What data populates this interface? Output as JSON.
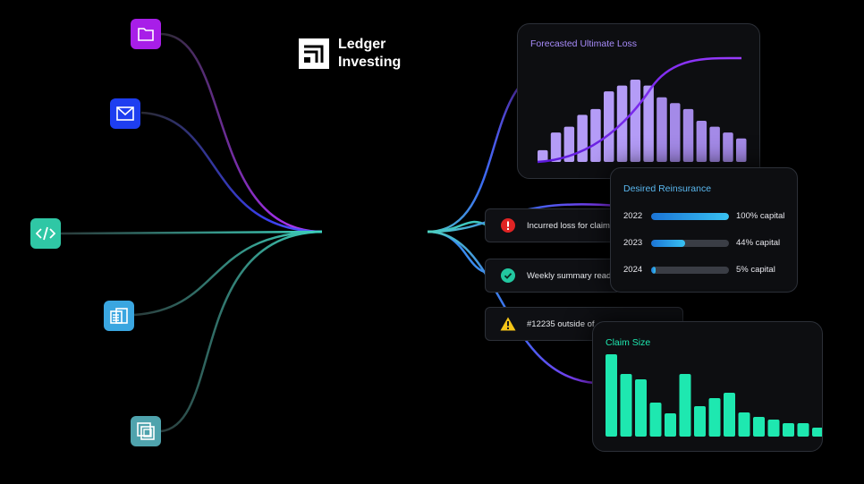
{
  "logo": {
    "line1": "Ledger",
    "line2": "Investing"
  },
  "source_icons": [
    {
      "name": "folder-icon",
      "color": "#a81ee8"
    },
    {
      "name": "mail-icon",
      "color": "#1e3ef0"
    },
    {
      "name": "code-icon",
      "color": "#2fc7a5"
    },
    {
      "name": "document-icon",
      "color": "#3aa6e0"
    },
    {
      "name": "copy-icon",
      "color": "#4fa3ad"
    }
  ],
  "forecast_card": {
    "title": "Forecasted Ultimate Loss",
    "accent": "#a78bfa",
    "chart_data": {
      "type": "bar",
      "values": [
        2,
        5,
        6,
        8,
        9,
        12,
        13,
        14,
        13,
        11,
        10,
        9,
        7,
        6,
        5,
        4
      ]
    }
  },
  "notifications": [
    {
      "icon": "alert-icon",
      "text": "Incurred loss for claim",
      "color": "#e02424"
    },
    {
      "icon": "check-icon",
      "text": "Weekly summary ready",
      "color": "#22c7a0"
    },
    {
      "icon": "warning-icon",
      "text": "#12235 outside of",
      "color": "#f5c518"
    }
  ],
  "reinsurance_card": {
    "title": "Desired Reinsurance",
    "rows": [
      {
        "year": "2022",
        "percent": 100,
        "label": "100% capital"
      },
      {
        "year": "2023",
        "percent": 44,
        "label": "44% capital"
      },
      {
        "year": "2024",
        "percent": 5,
        "label": "5% capital"
      }
    ]
  },
  "claim_card": {
    "title": "Claim Size",
    "accent": "#1ee8b0",
    "chart_data": {
      "type": "bar",
      "values": [
        92,
        70,
        64,
        38,
        26,
        70,
        34,
        43,
        49,
        27,
        22,
        19,
        15,
        15,
        10
      ]
    }
  }
}
